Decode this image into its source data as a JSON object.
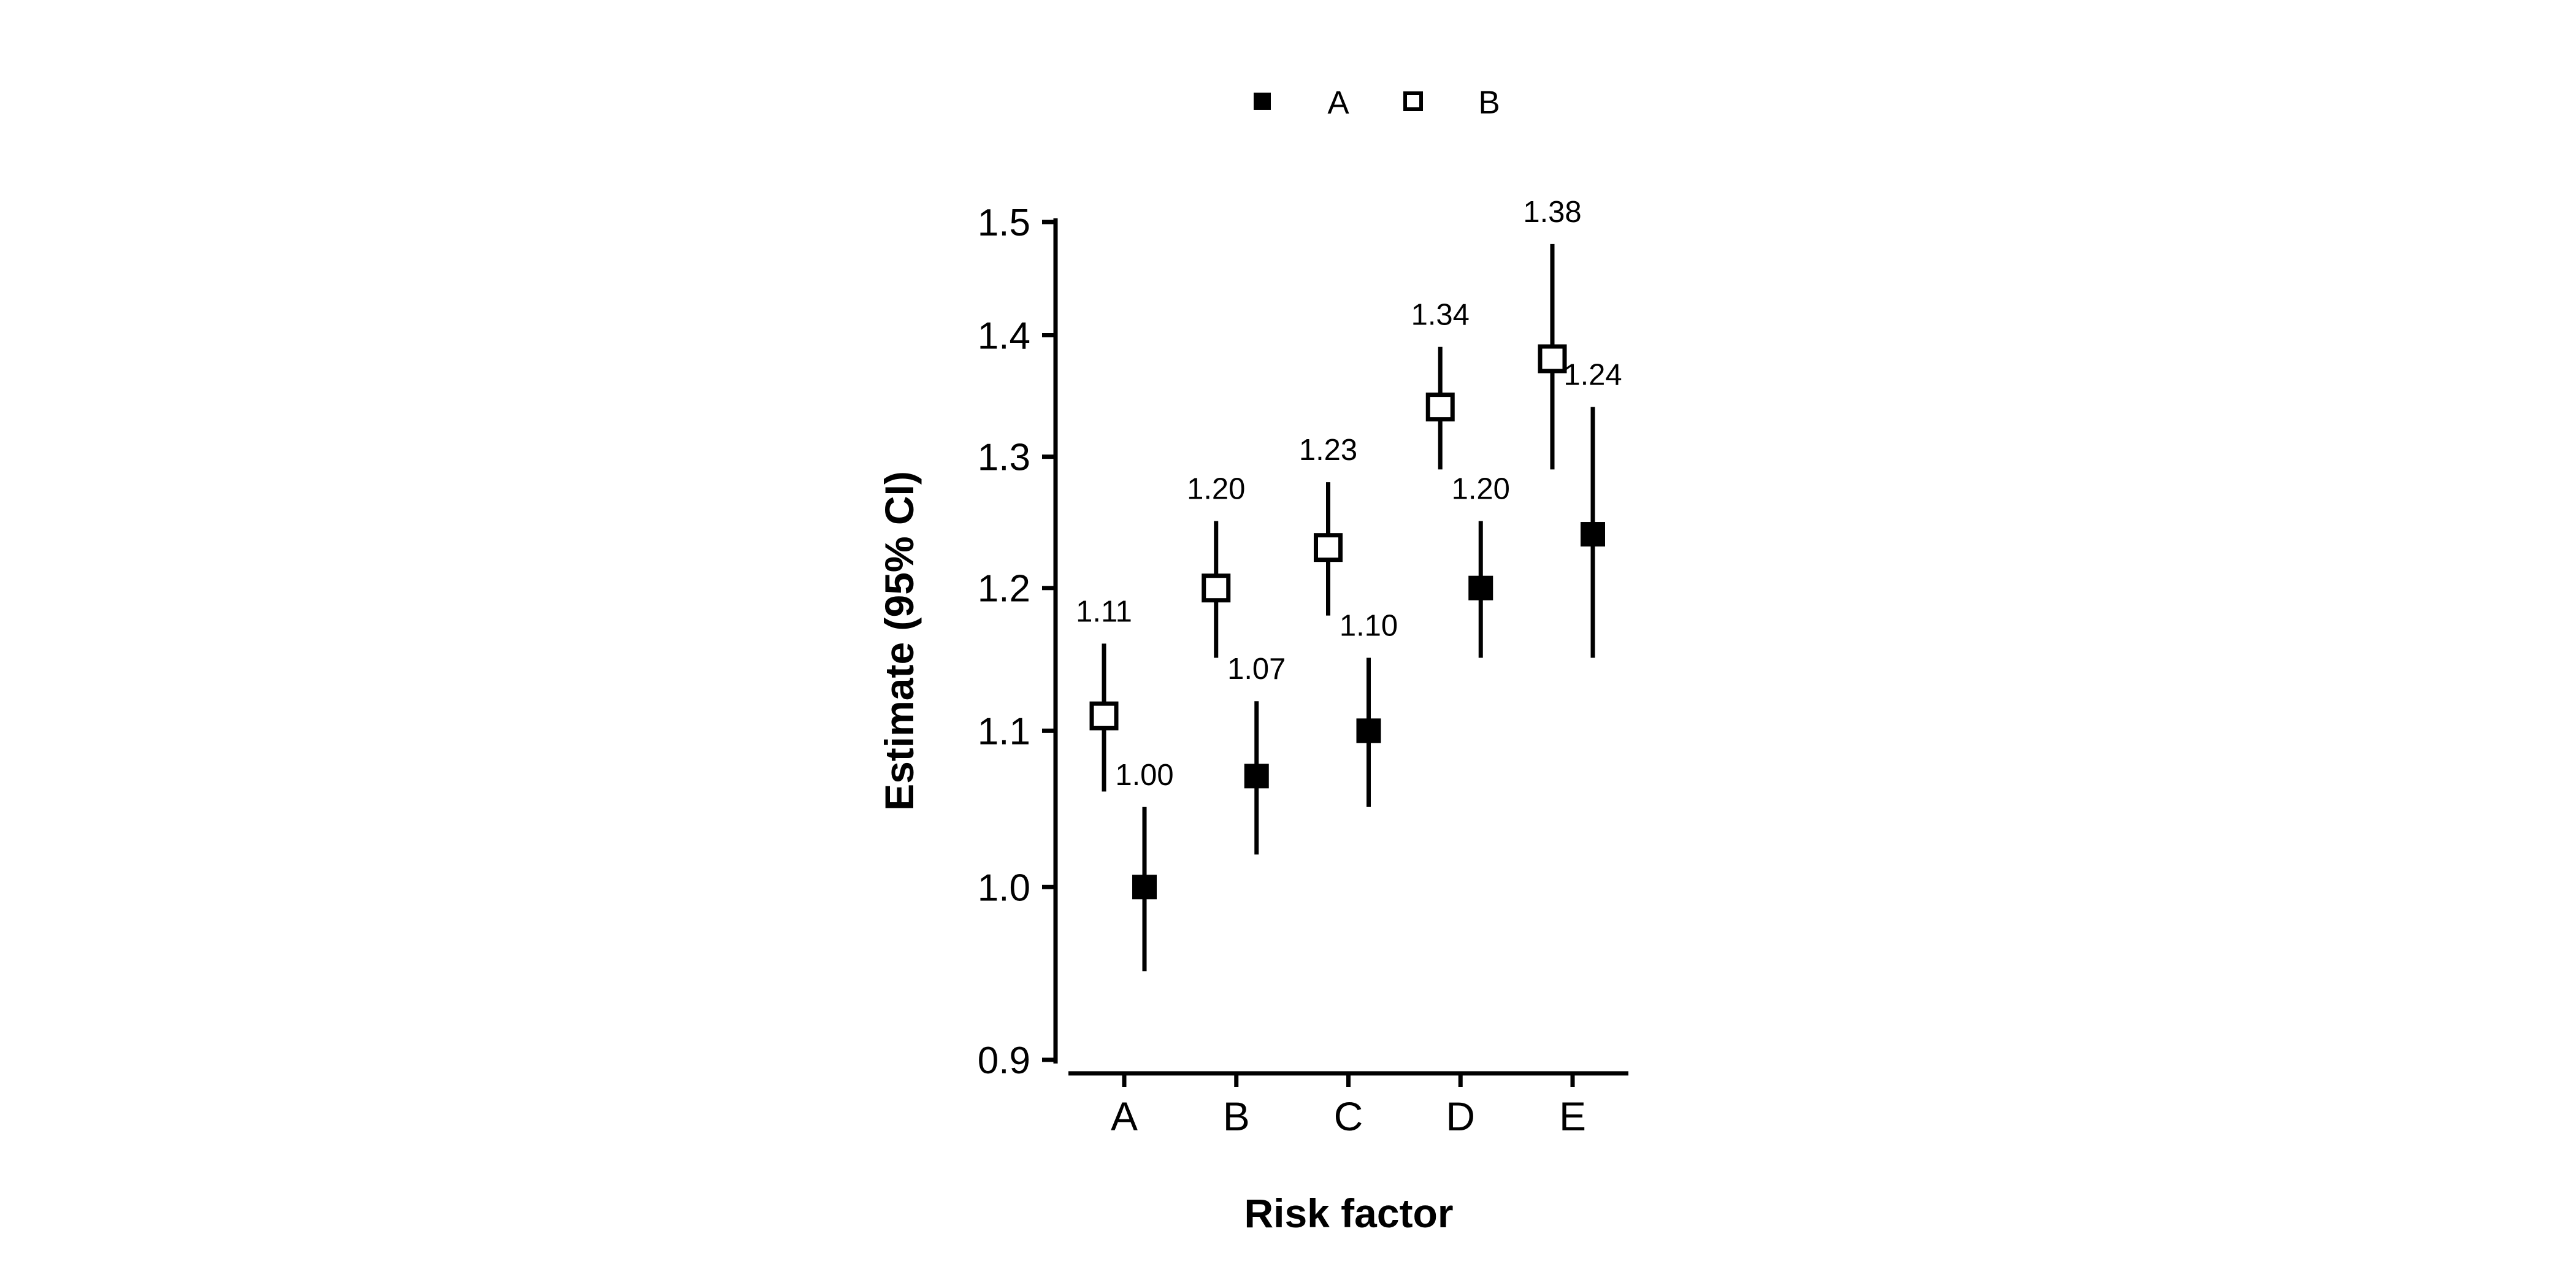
{
  "figure": {
    "background_color": "#ffffff",
    "foreground_color": "#000000"
  },
  "chart_data": {
    "type": "scatter",
    "subtype": "forest_plot_point_estimates_with_ci",
    "title": "",
    "xlabel": "Risk factor",
    "ylabel": "Estimate (95% CI)",
    "categories": [
      "A",
      "B",
      "C",
      "D",
      "E"
    ],
    "y_axis": {
      "scale": "log",
      "range": [
        0.9,
        1.5
      ],
      "ticks": [
        0.9,
        1.0,
        1.1,
        1.2,
        1.3,
        1.4,
        1.5
      ],
      "tick_labels": [
        "0.9",
        "1.0",
        "1.1",
        "1.2",
        "1.3",
        "1.4",
        "1.5"
      ]
    },
    "grid": false,
    "legend_position": "top-center",
    "legend": [
      {
        "label": "A",
        "marker": "filled-square"
      },
      {
        "label": "B",
        "marker": "open-square"
      }
    ],
    "series": [
      {
        "name": "A",
        "marker": "filled-square",
        "color": "#000000",
        "offset_side": "right",
        "points": [
          {
            "category": "A",
            "estimate": 1.0,
            "ci_low": 0.95,
            "ci_high": 1.05,
            "label": "1.00"
          },
          {
            "category": "B",
            "estimate": 1.07,
            "ci_low": 1.02,
            "ci_high": 1.12,
            "label": "1.07"
          },
          {
            "category": "C",
            "estimate": 1.1,
            "ci_low": 1.05,
            "ci_high": 1.15,
            "label": "1.10"
          },
          {
            "category": "D",
            "estimate": 1.2,
            "ci_low": 1.15,
            "ci_high": 1.25,
            "label": "1.20"
          },
          {
            "category": "E",
            "estimate": 1.24,
            "ci_low": 1.15,
            "ci_high": 1.34,
            "label": "1.24"
          }
        ]
      },
      {
        "name": "B",
        "marker": "open-square",
        "color": "#000000",
        "offset_side": "left",
        "points": [
          {
            "category": "A",
            "estimate": 1.11,
            "ci_low": 1.06,
            "ci_high": 1.16,
            "label": "1.11"
          },
          {
            "category": "B",
            "estimate": 1.2,
            "ci_low": 1.15,
            "ci_high": 1.25,
            "label": "1.20"
          },
          {
            "category": "C",
            "estimate": 1.23,
            "ci_low": 1.18,
            "ci_high": 1.28,
            "label": "1.23"
          },
          {
            "category": "D",
            "estimate": 1.34,
            "ci_low": 1.29,
            "ci_high": 1.39,
            "label": "1.34"
          },
          {
            "category": "E",
            "estimate": 1.38,
            "ci_low": 1.29,
            "ci_high": 1.48,
            "label": "1.38"
          }
        ]
      }
    ]
  }
}
